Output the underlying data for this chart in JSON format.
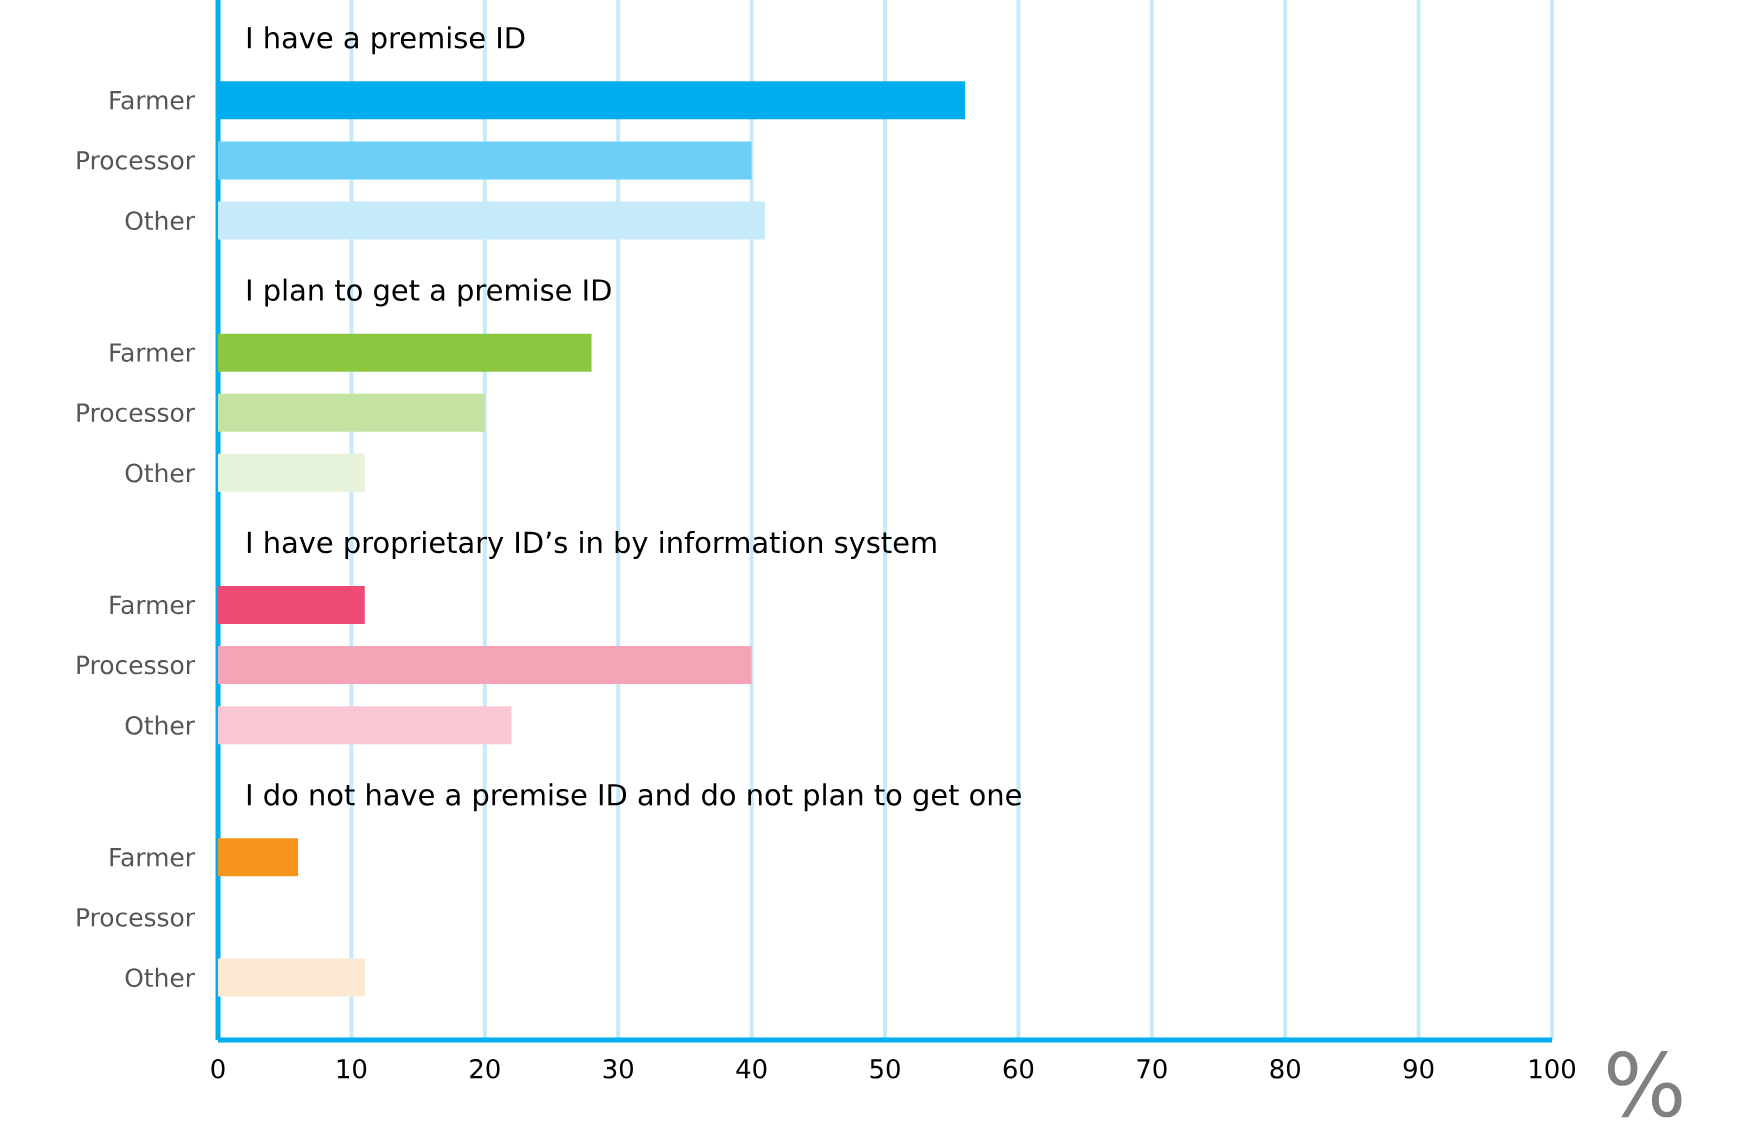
{
  "chart_data": {
    "type": "bar",
    "orientation": "horizontal",
    "categories": [
      "Farmer",
      "Processor",
      "Other",
      "Farmer",
      "Processor",
      "Other",
      "Farmer",
      "Processor",
      "Other",
      "Farmer",
      "Processor",
      "Other"
    ],
    "values": [
      56,
      40,
      41,
      28,
      20,
      11,
      11,
      40,
      22,
      6,
      0,
      11
    ],
    "colors": [
      "#00aeef",
      "#6dcff6",
      "#c7eafa",
      "#8dc63f",
      "#c4e3a0",
      "#e6f3da",
      "#ef4a74",
      "#f5a3b7",
      "#f9c7d4",
      "#f7941d",
      "#fbc98e",
      "#fde8d1"
    ],
    "annotations": [
      "I have a premise ID",
      "I plan to get a premise ID",
      "I have proprietary ID’s in by information system",
      "I do not have a premise ID and do not plan to get one"
    ],
    "xlabel": "%",
    "xlim": [
      0,
      100
    ],
    "xticks": [
      0,
      10,
      20,
      30,
      40,
      50,
      60,
      70,
      80,
      90,
      100
    ],
    "grid": "x"
  }
}
